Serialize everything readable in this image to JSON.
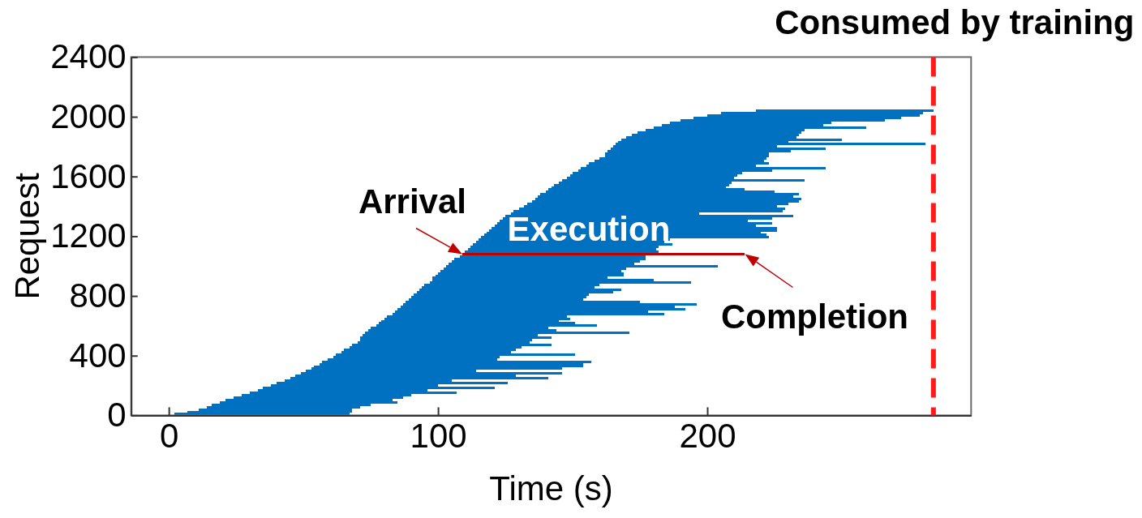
{
  "chart_data": {
    "type": "bar",
    "orientation": "horizontal",
    "xlabel": "Time (s)",
    "ylabel": "Request",
    "x": [
      8,
      24,
      40,
      56,
      72,
      88,
      104,
      120,
      136,
      152,
      168,
      184,
      200,
      216,
      232,
      248,
      264,
      280,
      296,
      312,
      328,
      344,
      360,
      376,
      392,
      408,
      424,
      440,
      456,
      472,
      488,
      504,
      520,
      536,
      552,
      568,
      584,
      600,
      616,
      632,
      648,
      664,
      680,
      696,
      712,
      728,
      744,
      760,
      776,
      792,
      808,
      824,
      840,
      856,
      872,
      888,
      904,
      920,
      936,
      952,
      968,
      984,
      1000,
      1016,
      1032,
      1048,
      1064,
      1080,
      1096,
      1112,
      1128,
      1144,
      1160,
      1176,
      1192,
      1208,
      1224,
      1240,
      1256,
      1272,
      1288,
      1304,
      1320,
      1336,
      1352,
      1368,
      1384,
      1400,
      1416,
      1432,
      1448,
      1464,
      1480,
      1496,
      1512,
      1528,
      1544,
      1560,
      1576,
      1592,
      1608,
      1624,
      1640,
      1656,
      1672,
      1688,
      1704,
      1720,
      1736,
      1752,
      1768,
      1784,
      1800,
      1816,
      1832,
      1848,
      1864,
      1880,
      1896,
      1912,
      1928,
      1944,
      1960,
      1976,
      1992,
      2008,
      2024,
      2040
    ],
    "base": [
      2,
      7,
      11,
      14,
      16,
      19,
      21,
      24,
      27,
      30,
      33,
      35,
      38,
      40,
      43,
      45,
      47,
      49,
      51,
      53,
      54,
      56,
      57,
      59,
      61,
      62,
      64,
      65,
      67,
      68,
      70,
      71,
      71,
      72,
      73,
      74,
      75,
      77,
      78,
      79,
      80,
      81,
      83,
      84,
      85,
      86,
      87,
      88,
      89,
      90,
      91,
      92,
      93,
      94,
      95,
      97,
      98,
      98,
      99,
      100,
      101,
      102,
      103,
      104,
      105,
      106,
      108,
      109,
      110,
      111,
      112,
      113,
      114,
      115,
      116,
      117,
      118,
      119,
      120,
      121,
      122,
      123,
      124,
      125,
      127,
      128,
      130,
      132,
      133,
      135,
      136,
      137,
      138,
      140,
      141,
      142,
      143,
      145,
      146,
      148,
      149,
      150,
      152,
      153,
      155,
      156,
      158,
      160,
      162,
      162,
      163,
      164,
      165,
      166,
      167,
      168,
      170,
      172,
      174,
      177,
      180,
      183,
      186,
      190,
      195,
      200,
      205,
      218
    ],
    "values": [
      65,
      61,
      57,
      57,
      59,
      66,
      62,
      63,
      63,
      77,
      63,
      86,
      62,
      86,
      62,
      96,
      82,
      97,
      63,
      93,
      100,
      98,
      100,
      63,
      62,
      89,
      63,
      64,
      64,
      74,
      64,
      64,
      71,
      65,
      98,
      70,
      66,
      82,
      73,
      66,
      69,
      67,
      101,
      94,
      107,
      102,
      109,
      87,
      65,
      65,
      65,
      73,
      75,
      64,
      65,
      97,
      82,
      65,
      70,
      69,
      67,
      68,
      101,
      69,
      70,
      71,
      69,
      105,
      72,
      70,
      70,
      74,
      70,
      71,
      107,
      105,
      102,
      107,
      106,
      97,
      102,
      92,
      100,
      107,
      70,
      100,
      99,
      94,
      97,
      99,
      99,
      95,
      96,
      85,
      73,
      65,
      65,
      64,
      90,
      62,
      62,
      63,
      72,
      91,
      63,
      67,
      63,
      62,
      61,
      61,
      68,
      80,
      61,
      115,
      63,
      82,
      63,
      62,
      61,
      59,
      79,
      60,
      60,
      76,
      77,
      79,
      75,
      66
    ],
    "colors": [
      "#0070c0",
      "#0070c0",
      "#0070c0",
      "#0070c0",
      "#0070c0",
      "#0070c0",
      "#0070c0",
      "#0070c0",
      "#0070c0",
      "#0070c0",
      "#0070c0",
      "#0070c0",
      "#0070c0",
      "#0070c0",
      "#0070c0",
      "#0070c0",
      "#0070c0",
      "#0070c0",
      "#0070c0",
      "#0070c0",
      "#0070c0",
      "#0070c0",
      "#0070c0",
      "#0070c0",
      "#0070c0",
      "#0070c0",
      "#0070c0",
      "#0070c0",
      "#0070c0",
      "#0070c0",
      "#0070c0",
      "#0070c0",
      "#0070c0",
      "#0070c0",
      "#0070c0",
      "#0070c0",
      "#0070c0",
      "#0070c0",
      "#0070c0",
      "#0070c0",
      "#0070c0",
      "#0070c0",
      "#0070c0",
      "#0070c0",
      "#0070c0",
      "#0070c0",
      "#0070c0",
      "#0070c0",
      "#0070c0",
      "#0070c0",
      "#0070c0",
      "#0070c0",
      "#0070c0",
      "#0070c0",
      "#0070c0",
      "#0070c0",
      "#0070c0",
      "#0070c0",
      "#0070c0",
      "#0070c0",
      "#0070c0",
      "#0070c0",
      "#0070c0",
      "#0070c0",
      "#0070c0",
      "#0070c0",
      "#0070c0",
      "#c00000",
      "#0070c0",
      "#0070c0",
      "#0070c0",
      "#0070c0",
      "#0070c0",
      "#0070c0",
      "#0070c0",
      "#0070c0",
      "#0070c0",
      "#0070c0",
      "#0070c0",
      "#0070c0",
      "#0070c0",
      "#0070c0",
      "#0070c0",
      "#0070c0",
      "#0070c0",
      "#0070c0",
      "#0070c0",
      "#0070c0",
      "#0070c0",
      "#0070c0",
      "#0070c0",
      "#0070c0",
      "#0070c0",
      "#0070c0",
      "#0070c0",
      "#0070c0",
      "#0070c0",
      "#0070c0",
      "#0070c0",
      "#0070c0",
      "#0070c0",
      "#0070c0",
      "#0070c0",
      "#0070c0",
      "#0070c0",
      "#0070c0",
      "#0070c0",
      "#0070c0",
      "#0070c0",
      "#0070c0",
      "#0070c0",
      "#0070c0",
      "#0070c0",
      "#0070c0",
      "#0070c0",
      "#0070c0",
      "#0070c0",
      "#0070c0",
      "#0070c0",
      "#0070c0",
      "#0070c0",
      "#0070c0",
      "#0070c0",
      "#0070c0",
      "#0070c0",
      "#0070c0",
      "#0070c0",
      "#0070c0"
    ],
    "xlim": [
      -14,
      298
    ],
    "xticks": [
      0,
      100,
      200
    ],
    "ylim": [
      0,
      2400
    ],
    "yticks": [
      0,
      400,
      800,
      1200,
      1600,
      2000,
      2400
    ],
    "ref_lines": [
      {
        "axis": "x",
        "value": 284,
        "label": "Consumed by training",
        "color": "#ff1a1a",
        "line_style": "dashed"
      }
    ],
    "annotations": [
      {
        "text": "Arrival",
        "x": 109,
        "y": 1080
      },
      {
        "text": "Execution",
        "x": 156,
        "y": 1080
      },
      {
        "text": "Completion",
        "x": 214,
        "y": 1080
      }
    ]
  }
}
